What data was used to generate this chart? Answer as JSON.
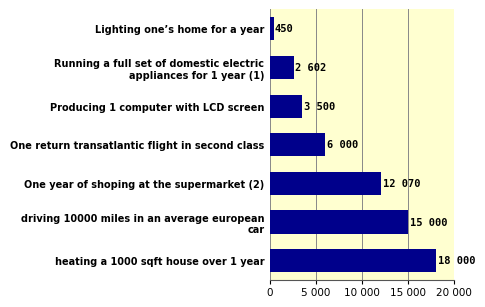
{
  "categories": [
    "heating a 1000 sqft house over 1 year",
    "driving 10000 miles in an average european\ncar",
    "One year of shoping at the supermarket (2)",
    "One return transatlantic flight in second class",
    "Producing 1 computer with LCD screen",
    "Running a full set of domestic electric\nappliances for 1 year (1)",
    "Lighting one’s home for a year"
  ],
  "values": [
    18000,
    15000,
    12070,
    6000,
    3500,
    2602,
    450
  ],
  "labels": [
    "18 000",
    "15 000",
    "12 070",
    "6 000",
    "3 500",
    "2 602",
    "450"
  ],
  "bar_color": "#00008B",
  "bg_left": "#FFFFFF",
  "bg_chart": "#FFFFD0",
  "xlim": [
    0,
    20000
  ],
  "xticks": [
    0,
    5000,
    10000,
    15000,
    20000
  ],
  "xtick_labels": [
    "0",
    "5 000",
    "10 000",
    "15 000",
    "20 000"
  ],
  "bar_height": 0.6,
  "label_fontsize": 7.0,
  "tick_fontsize": 7.5,
  "value_fontsize": 7.5
}
